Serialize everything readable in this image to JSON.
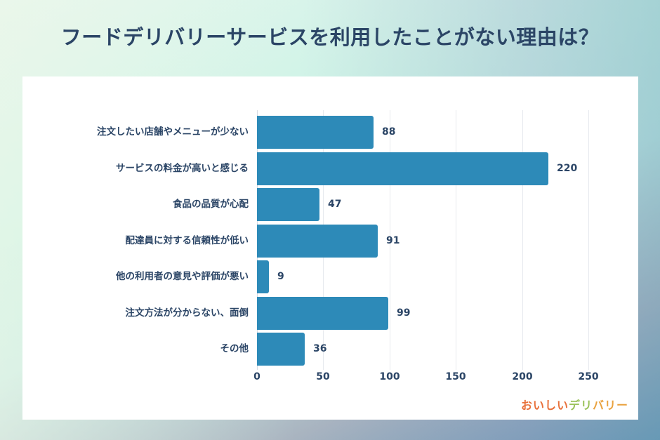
{
  "title": "フードデリバリーサービスを利用したことがない理由は？",
  "logo": {
    "part1": "おいしい",
    "part2": "デリ",
    "part3": "バリー"
  },
  "colors": {
    "bar": "#2d8ab8",
    "text": "#2b4566",
    "grid": "#e6e9ee"
  },
  "chart_data": {
    "type": "bar",
    "orientation": "horizontal",
    "title": "フードデリバリーサービスを利用したことがない理由は？",
    "xlabel": "",
    "ylabel": "",
    "xlim": [
      0,
      260
    ],
    "xticks": [
      0,
      50,
      100,
      150,
      200,
      250
    ],
    "grid": true,
    "legend": null,
    "categories": [
      "注文したい店舗やメニューが少ない",
      "サービスの料金が高いと感じる",
      "食品の品質が心配",
      "配達員に対する信頼性が低い",
      "他の利用者の意見や評価が悪い",
      "注文方法が分からない、面倒",
      "その他"
    ],
    "values": [
      88,
      220,
      47,
      91,
      9,
      99,
      36
    ]
  }
}
